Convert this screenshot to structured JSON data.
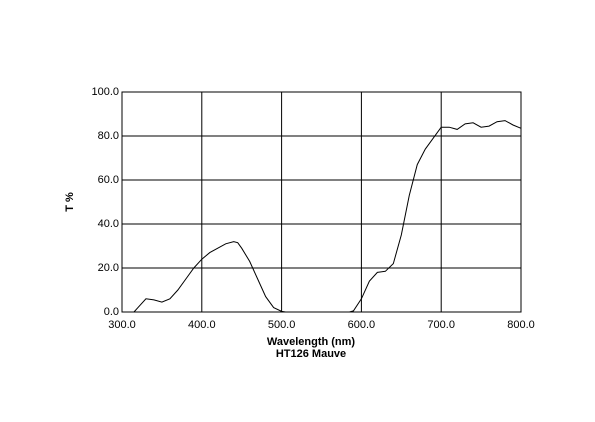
{
  "chart_data": {
    "type": "line",
    "title": "HT126 Mauve",
    "x_label": "Wavelength (nm)",
    "y_label": "T %",
    "x": [
      315,
      320,
      330,
      340,
      350,
      360,
      370,
      380,
      390,
      400,
      410,
      420,
      430,
      440,
      445,
      450,
      460,
      470,
      480,
      490,
      500,
      505,
      520,
      540,
      560,
      580,
      585,
      590,
      600,
      610,
      620,
      630,
      640,
      650,
      660,
      670,
      680,
      690,
      700,
      710,
      720,
      730,
      740,
      750,
      760,
      770,
      780,
      790,
      800
    ],
    "values": [
      0,
      2,
      6,
      5.5,
      4.5,
      6,
      10,
      15,
      20,
      24,
      27,
      29,
      31,
      32,
      31.5,
      29,
      23,
      15,
      7,
      2,
      0.3,
      0,
      0,
      0,
      0,
      0,
      0,
      0.5,
      6,
      14,
      18,
      18.5,
      22,
      35,
      53,
      67,
      74,
      79,
      84,
      84,
      83,
      85.5,
      86,
      84,
      84.5,
      86.5,
      87,
      85,
      83.5
    ],
    "color": "#000000",
    "xlim": [
      300,
      800
    ],
    "ylim": [
      0,
      100
    ],
    "xticks": [
      {
        "value": 300,
        "label": "300.0"
      },
      {
        "value": 400,
        "label": "400.0"
      },
      {
        "value": 500,
        "label": "500.0"
      },
      {
        "value": 600,
        "label": "600.0"
      },
      {
        "value": 700,
        "label": "700.0"
      },
      {
        "value": 800,
        "label": "800.0"
      }
    ],
    "yticks": [
      {
        "value": 0,
        "label": "0.0"
      },
      {
        "value": 20,
        "label": "20.0"
      },
      {
        "value": 40,
        "label": "40.0"
      },
      {
        "value": 60,
        "label": "60.0"
      },
      {
        "value": 80,
        "label": "80.0"
      },
      {
        "value": 100,
        "label": "100.0"
      }
    ],
    "grid": true
  }
}
